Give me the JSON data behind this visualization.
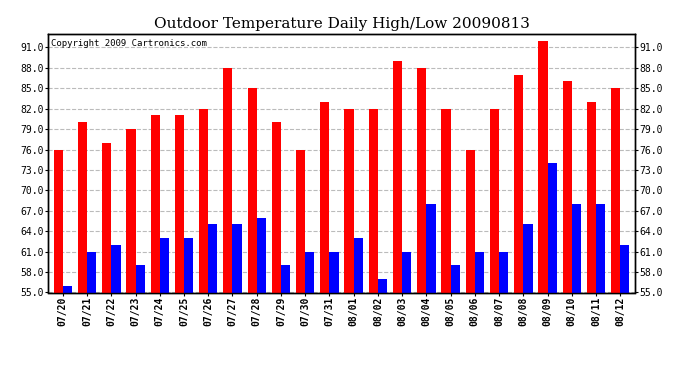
{
  "title": "Outdoor Temperature Daily High/Low 20090813",
  "copyright": "Copyright 2009 Cartronics.com",
  "dates": [
    "07/20",
    "07/21",
    "07/22",
    "07/23",
    "07/24",
    "07/25",
    "07/26",
    "07/27",
    "07/28",
    "07/29",
    "07/30",
    "07/31",
    "08/01",
    "08/02",
    "08/03",
    "08/04",
    "08/05",
    "08/06",
    "08/07",
    "08/08",
    "08/09",
    "08/10",
    "08/11",
    "08/12"
  ],
  "highs": [
    76,
    80,
    77,
    79,
    81,
    81,
    82,
    88,
    85,
    80,
    76,
    83,
    82,
    82,
    89,
    88,
    82,
    76,
    82,
    87,
    92,
    86,
    83,
    85
  ],
  "lows": [
    56,
    61,
    62,
    59,
    63,
    63,
    65,
    65,
    66,
    59,
    61,
    61,
    63,
    57,
    61,
    68,
    59,
    61,
    61,
    65,
    74,
    68,
    68,
    62
  ],
  "high_color": "#ff0000",
  "low_color": "#0000ff",
  "bg_color": "#ffffff",
  "grid_color": "#bbbbbb",
  "ymin": 55.0,
  "ymax": 93.0,
  "yticks": [
    55.0,
    58.0,
    61.0,
    64.0,
    67.0,
    70.0,
    73.0,
    76.0,
    79.0,
    82.0,
    85.0,
    88.0,
    91.0
  ],
  "bar_width": 0.38,
  "title_fontsize": 11,
  "tick_fontsize": 7,
  "copyright_fontsize": 6.5
}
